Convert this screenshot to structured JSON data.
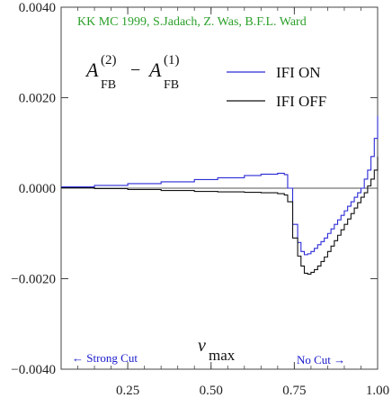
{
  "chart_data": {
    "type": "line",
    "title": "",
    "caption": "KK MC 1999, S.Jadach, Z. Was, B.F.L. Ward",
    "ylabel_formula": {
      "a": "A",
      "a_sup": "(2)",
      "a_sub": "FB",
      "minus": "−",
      "b": "A",
      "b_sup": "(1)",
      "b_sub": "FB"
    },
    "xlabel": {
      "base": "v",
      "sub": "max"
    },
    "xlim": [
      0.05,
      1.0
    ],
    "ylim": [
      -0.004,
      0.004
    ],
    "x_ticks": [
      {
        "value": 0.25,
        "label": "0.25"
      },
      {
        "value": 0.5,
        "label": "0.50"
      },
      {
        "value": 0.75,
        "label": "0.75"
      },
      {
        "value": 1.0,
        "label": "1.00"
      }
    ],
    "y_ticks": [
      {
        "value": 0.004,
        "label": "0.0040"
      },
      {
        "value": 0.002,
        "label": "0.0020"
      },
      {
        "value": 0.0,
        "label": "0.0000"
      },
      {
        "value": -0.002,
        "label": "−0.0020"
      },
      {
        "value": -0.004,
        "label": "−0.0040"
      }
    ],
    "annotations": {
      "left": "← Strong Cut",
      "right": "No Cut →"
    },
    "zero_line": 0.0,
    "series": [
      {
        "name": "IFI ON",
        "color": "#2b2bd6",
        "step": true,
        "x": [
          0.05,
          0.15,
          0.25,
          0.35,
          0.45,
          0.52,
          0.6,
          0.65,
          0.7,
          0.72,
          0.73,
          0.745,
          0.76,
          0.77,
          0.78,
          0.79,
          0.8,
          0.81,
          0.82,
          0.83,
          0.84,
          0.85,
          0.86,
          0.87,
          0.88,
          0.89,
          0.9,
          0.91,
          0.92,
          0.93,
          0.94,
          0.95,
          0.96,
          0.97,
          0.98,
          0.99,
          1.0
        ],
        "y": [
          3e-05,
          6e-05,
          0.0001,
          0.00014,
          0.00019,
          0.00023,
          0.00028,
          0.00031,
          0.00033,
          0.0003,
          0.0,
          -0.0008,
          -0.0012,
          -0.0014,
          -0.00147,
          -0.00145,
          -0.0014,
          -0.00133,
          -0.00125,
          -0.00118,
          -0.0011,
          -0.001,
          -0.0009,
          -0.0008,
          -0.0007,
          -0.0006,
          -0.0005,
          -0.0004,
          -0.0003,
          -0.0002,
          -0.0001,
          0.0,
          0.0002,
          0.0004,
          0.0007,
          0.0011,
          0.0016
        ]
      },
      {
        "name": "IFI OFF",
        "color": "#111111",
        "step": true,
        "x": [
          0.05,
          0.15,
          0.25,
          0.35,
          0.45,
          0.52,
          0.6,
          0.65,
          0.7,
          0.72,
          0.73,
          0.745,
          0.76,
          0.77,
          0.78,
          0.79,
          0.8,
          0.81,
          0.82,
          0.83,
          0.84,
          0.85,
          0.86,
          0.87,
          0.88,
          0.89,
          0.9,
          0.91,
          0.92,
          0.93,
          0.94,
          0.95,
          0.96,
          0.97,
          0.98,
          0.99,
          1.0
        ],
        "y": [
          1e-05,
          -1e-05,
          -3e-05,
          -5e-05,
          -7e-05,
          -8e-05,
          -9e-05,
          -0.0001,
          -0.00012,
          -0.00015,
          -0.0003,
          -0.0011,
          -0.0015,
          -0.00172,
          -0.00188,
          -0.0019,
          -0.00186,
          -0.0018,
          -0.00172,
          -0.00162,
          -0.00152,
          -0.0014,
          -0.00128,
          -0.00116,
          -0.00104,
          -0.00092,
          -0.0008,
          -0.00068,
          -0.00056,
          -0.00044,
          -0.00032,
          -0.0002,
          -0.0001,
          5e-05,
          0.0002,
          0.0004,
          0.0007
        ]
      }
    ]
  }
}
